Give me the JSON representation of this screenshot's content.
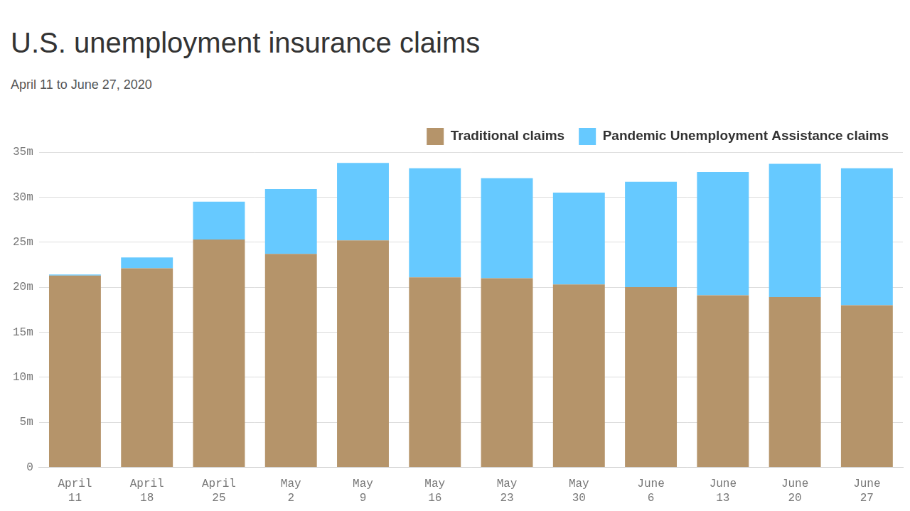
{
  "chart_data": {
    "type": "bar",
    "title": "U.S. unemployment insurance claims",
    "subtitle": "April 11 to June 27, 2020",
    "categories": [
      "April 11",
      "April 18",
      "April 25",
      "May 2",
      "May 9",
      "May 16",
      "May 23",
      "May 30",
      "June 6",
      "June 13",
      "June 20",
      "June 27"
    ],
    "series": [
      {
        "name": "Traditional claims",
        "color": "#b5946a",
        "values": [
          21.3,
          22.1,
          25.3,
          23.7,
          25.2,
          21.1,
          21.0,
          20.3,
          20.0,
          19.1,
          18.9,
          18.0
        ]
      },
      {
        "name": "Pandemic Unemployment Assistance claims",
        "color": "#66c9ff",
        "values": [
          0.1,
          1.2,
          4.2,
          7.2,
          8.6,
          12.1,
          11.1,
          10.2,
          11.7,
          13.7,
          14.8,
          15.2
        ]
      }
    ],
    "ylim": [
      0,
      35
    ],
    "yticks": [
      0,
      {
        "value": 5,
        "label": "5m"
      },
      {
        "value": 10,
        "label": "10m"
      },
      {
        "value": 15,
        "label": "15m"
      },
      {
        "value": 20,
        "label": "20m"
      },
      {
        "value": 25,
        "label": "25m"
      },
      {
        "value": 30,
        "label": "30m"
      },
      {
        "value": 35,
        "label": "35m"
      }
    ],
    "stacked": true,
    "grid": true,
    "legend": "top-right"
  }
}
